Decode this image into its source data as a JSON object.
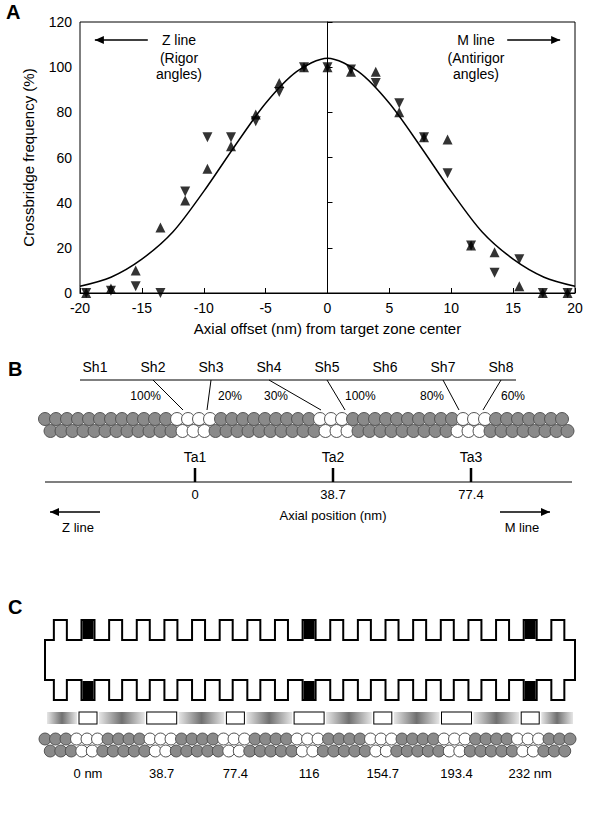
{
  "chart_data": {
    "type": "scatter",
    "panel": "A",
    "xlabel": "Axial offset (nm) from target zone center",
    "ylabel": "Crossbridge frequency (%)",
    "xlim": [
      -20,
      20
    ],
    "xticks": [
      -20,
      -15,
      -10,
      -5,
      0,
      5,
      10,
      15,
      20
    ],
    "ylim": [
      0,
      120
    ],
    "yticks": [
      0,
      20,
      40,
      60,
      80,
      100,
      120
    ],
    "grid": false,
    "annotations": [
      {
        "text": "Z line",
        "subtext": "(Rigor angles)"
      },
      {
        "text": "M line",
        "subtext": "(Antirigor angles)"
      }
    ],
    "series": [
      {
        "type": "scatter",
        "marker": "triangle-up",
        "color": "#000000",
        "x": [
          -19.5,
          -17.5,
          -15.5,
          -13.5,
          -11.5,
          -9.7,
          -7.8,
          -5.8,
          -3.9,
          -1.9,
          0,
          1.9,
          3.9,
          5.8,
          7.8,
          9.7,
          11.6,
          13.5,
          15.5,
          17.4,
          19.4
        ],
        "values": [
          0,
          2,
          10,
          29,
          41,
          55,
          65,
          79,
          93,
          100,
          100,
          98,
          98,
          80,
          69,
          68,
          21,
          18,
          3,
          0,
          0
        ]
      },
      {
        "type": "scatter",
        "marker": "triangle-down",
        "color": "#000000",
        "x": [
          -19.5,
          -17.5,
          -15.5,
          -13.5,
          -11.5,
          -9.7,
          -7.8,
          -5.8,
          -3.9,
          -1.9,
          0,
          1.9,
          3.9,
          5.8,
          7.8,
          9.7,
          11.6,
          13.5,
          15.5,
          17.4,
          19.4
        ],
        "values": [
          0,
          1,
          3,
          0,
          45,
          69,
          69,
          76,
          89,
          100,
          100,
          99,
          93,
          84,
          69,
          53,
          21,
          9,
          15,
          0,
          0
        ]
      },
      {
        "type": "line",
        "marker": "none",
        "line_style": "solid",
        "color": "#000000",
        "x": [
          -20,
          -17.5,
          -15,
          -12.5,
          -10,
          -7.5,
          -5,
          -2.5,
          0,
          2.5,
          5,
          7.5,
          10,
          12.5,
          15,
          17.5,
          20
        ],
        "values": [
          3,
          7,
          15,
          27,
          45,
          65,
          84,
          98,
          104,
          98,
          84,
          65,
          45,
          27,
          15,
          7,
          3
        ]
      }
    ]
  },
  "panel_b": {
    "panel": "B",
    "shelves": [
      "Sh1",
      "Sh2",
      "Sh3",
      "Sh4",
      "Sh5",
      "Sh6",
      "Sh7",
      "Sh8"
    ],
    "target_zones": [
      "Ta1",
      "Ta2",
      "Ta3"
    ],
    "links": [
      {
        "shelf": "Sh2",
        "zone": "Ta1",
        "label": "100%"
      },
      {
        "shelf": "Sh3",
        "zone": "Ta1",
        "label": "20%"
      },
      {
        "shelf": "Sh4",
        "zone": "Ta2",
        "label": "30%"
      },
      {
        "shelf": "Sh5",
        "zone": "Ta2",
        "label": "100%"
      },
      {
        "shelf": "Sh7",
        "zone": "Ta3",
        "label": "80%"
      },
      {
        "shelf": "Sh8",
        "zone": "Ta3",
        "label": "60%"
      }
    ],
    "axis": {
      "labels": [
        "0",
        "38.7",
        "77.4"
      ],
      "title": "Axial position (nm)",
      "left": "Z line",
      "right": "M line"
    }
  },
  "panel_c": {
    "panel": "C",
    "positions": [
      "0 nm",
      "38.7",
      "77.4",
      "116",
      "154.7",
      "193.4",
      "232 nm"
    ]
  }
}
